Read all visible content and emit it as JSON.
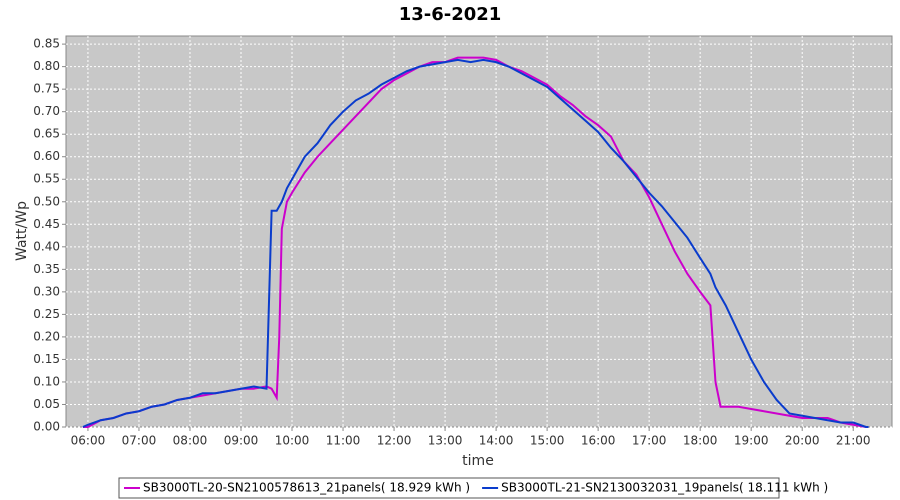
{
  "chart_data": {
    "type": "line",
    "title": "13-6-2021",
    "x_label": "time",
    "y_label": "Watt/Wp",
    "x": [
      5.9,
      6.0,
      6.25,
      6.5,
      6.75,
      7.0,
      7.25,
      7.5,
      7.75,
      8.0,
      8.25,
      8.5,
      8.75,
      9.0,
      9.25,
      9.5,
      9.6,
      9.7,
      9.75,
      9.8,
      9.9,
      10.0,
      10.25,
      10.5,
      10.75,
      11.0,
      11.25,
      11.5,
      11.75,
      12.0,
      12.25,
      12.5,
      12.75,
      13.0,
      13.25,
      13.5,
      13.75,
      14.0,
      14.25,
      14.5,
      14.75,
      15.0,
      15.25,
      15.5,
      15.75,
      16.0,
      16.25,
      16.5,
      16.75,
      17.0,
      17.25,
      17.5,
      17.75,
      18.0,
      18.2,
      18.3,
      18.4,
      18.5,
      18.75,
      19.0,
      19.25,
      19.5,
      19.75,
      20.0,
      20.25,
      20.5,
      20.75,
      21.0,
      21.25,
      21.3
    ],
    "series": [
      {
        "name": "SB3000TL-20-SN2100578613_21panels( 18.929 kWh )",
        "color": "#cc00cc",
        "values": [
          0,
          0,
          0.015,
          0.02,
          0.03,
          0.035,
          0.045,
          0.05,
          0.06,
          0.065,
          0.07,
          0.075,
          0.08,
          0.085,
          0.085,
          0.09,
          0.085,
          0.065,
          0.2,
          0.44,
          0.5,
          0.52,
          0.565,
          0.6,
          0.63,
          0.66,
          0.69,
          0.72,
          0.75,
          0.77,
          0.785,
          0.8,
          0.81,
          0.81,
          0.82,
          0.82,
          0.82,
          0.815,
          0.8,
          0.79,
          0.775,
          0.76,
          0.735,
          0.715,
          0.69,
          0.67,
          0.645,
          0.59,
          0.56,
          0.51,
          0.45,
          0.39,
          0.34,
          0.3,
          0.27,
          0.1,
          0.045,
          0.045,
          0.045,
          0.04,
          0.035,
          0.03,
          0.025,
          0.02,
          0.02,
          0.02,
          0.01,
          0.005,
          0,
          0
        ]
      },
      {
        "name": "SB3000TL-21-SN2130032031_19panels( 18.111 kWh )",
        "color": "#0a3ccc",
        "values": [
          0,
          0.005,
          0.015,
          0.02,
          0.03,
          0.035,
          0.045,
          0.05,
          0.06,
          0.065,
          0.075,
          0.075,
          0.08,
          0.085,
          0.09,
          0.085,
          0.48,
          0.48,
          0.49,
          0.5,
          0.53,
          0.55,
          0.6,
          0.63,
          0.67,
          0.7,
          0.725,
          0.74,
          0.76,
          0.775,
          0.79,
          0.8,
          0.805,
          0.81,
          0.815,
          0.81,
          0.815,
          0.81,
          0.8,
          0.785,
          0.77,
          0.755,
          0.73,
          0.705,
          0.68,
          0.655,
          0.62,
          0.59,
          0.555,
          0.52,
          0.49,
          0.455,
          0.42,
          0.375,
          0.34,
          0.31,
          0.29,
          0.27,
          0.21,
          0.15,
          0.1,
          0.06,
          0.03,
          0.025,
          0.02,
          0.015,
          0.01,
          0.01,
          0,
          0
        ]
      }
    ],
    "xlim": [
      5.57,
      21.76
    ],
    "ylim": [
      0,
      0.868
    ],
    "xticks": [
      {
        "value": 6,
        "label": "06:00"
      },
      {
        "value": 7,
        "label": "07:00"
      },
      {
        "value": 8,
        "label": "08:00"
      },
      {
        "value": 9,
        "label": "09:00"
      },
      {
        "value": 10,
        "label": "10:00"
      },
      {
        "value": 11,
        "label": "11:00"
      },
      {
        "value": 12,
        "label": "12:00"
      },
      {
        "value": 13,
        "label": "13:00"
      },
      {
        "value": 14,
        "label": "14:00"
      },
      {
        "value": 15,
        "label": "15:00"
      },
      {
        "value": 16,
        "label": "16:00"
      },
      {
        "value": 17,
        "label": "17:00"
      },
      {
        "value": 18,
        "label": "18:00"
      },
      {
        "value": 19,
        "label": "19:00"
      },
      {
        "value": 20,
        "label": "20:00"
      },
      {
        "value": 21,
        "label": "21:00"
      }
    ],
    "yticks": [
      {
        "value": 0,
        "label": "0.00"
      },
      {
        "value": 0.05,
        "label": "0.05"
      },
      {
        "value": 0.1,
        "label": "0.10"
      },
      {
        "value": 0.15,
        "label": "0.15"
      },
      {
        "value": 0.2,
        "label": "0.20"
      },
      {
        "value": 0.25,
        "label": "0.25"
      },
      {
        "value": 0.3,
        "label": "0.30"
      },
      {
        "value": 0.35,
        "label": "0.35"
      },
      {
        "value": 0.4,
        "label": "0.40"
      },
      {
        "value": 0.45,
        "label": "0.45"
      },
      {
        "value": 0.5,
        "label": "0.50"
      },
      {
        "value": 0.55,
        "label": "0.55"
      },
      {
        "value": 0.6,
        "label": "0.60"
      },
      {
        "value": 0.65,
        "label": "0.65"
      },
      {
        "value": 0.7,
        "label": "0.70"
      },
      {
        "value": 0.75,
        "label": "0.75"
      },
      {
        "value": 0.8,
        "label": "0.80"
      },
      {
        "value": 0.85,
        "label": "0.85"
      }
    ],
    "grid": true,
    "legend": "bottom"
  }
}
